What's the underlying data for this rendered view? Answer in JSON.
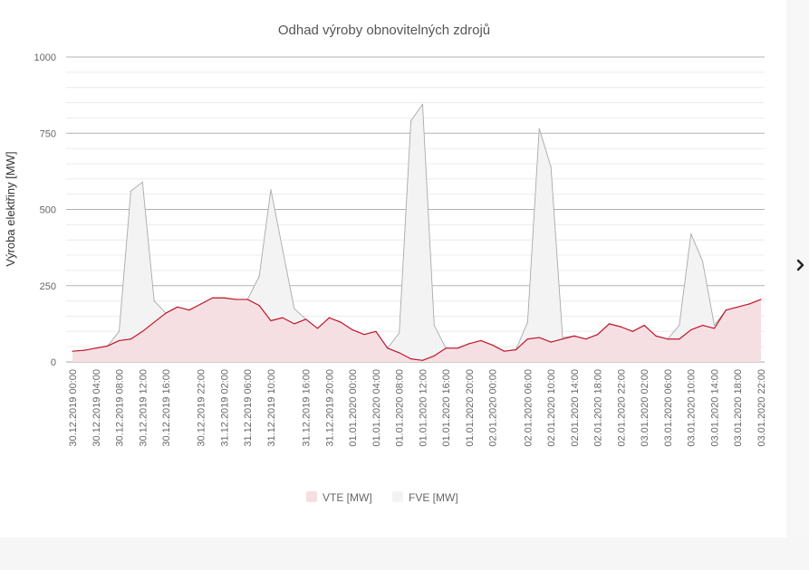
{
  "chart_data": {
    "type": "area",
    "title": "Odhad výroby obnovitelných zdrojů",
    "xlabel": "",
    "ylabel": "Výroba elektřiny [MW]",
    "ylim": [
      0,
      1000
    ],
    "yticks": [
      0,
      250,
      500,
      750,
      1000
    ],
    "grid": true,
    "legend_position": "bottom",
    "x": [
      "30.12.2019 00:00",
      "30.12.2019 02:00",
      "30.12.2019 04:00",
      "30.12.2019 06:00",
      "30.12.2019 08:00",
      "30.12.2019 10:00",
      "30.12.2019 12:00",
      "30.12.2019 14:00",
      "30.12.2019 16:00",
      "30.12.2019 18:00",
      "30.12.2019 20:00",
      "30.12.2019 22:00",
      "31.12.2019 00:00",
      "31.12.2019 02:00",
      "31.12.2019 04:00",
      "31.12.2019 06:00",
      "31.12.2019 08:00",
      "31.12.2019 10:00",
      "31.12.2019 12:00",
      "31.12.2019 14:00",
      "31.12.2019 16:00",
      "31.12.2019 18:00",
      "31.12.2019 20:00",
      "31.12.2019 22:00",
      "01.01.2020 00:00",
      "01.01.2020 02:00",
      "01.01.2020 04:00",
      "01.01.2020 06:00",
      "01.01.2020 08:00",
      "01.01.2020 10:00",
      "01.01.2020 12:00",
      "01.01.2020 14:00",
      "01.01.2020 16:00",
      "01.01.2020 18:00",
      "01.01.2020 20:00",
      "01.01.2020 22:00",
      "02.01.2020 00:00",
      "02.01.2020 02:00",
      "02.01.2020 04:00",
      "02.01.2020 06:00",
      "02.01.2020 08:00",
      "02.01.2020 10:00",
      "02.01.2020 12:00",
      "02.01.2020 14:00",
      "02.01.2020 16:00",
      "02.01.2020 18:00",
      "02.01.2020 20:00",
      "02.01.2020 22:00",
      "03.01.2020 00:00",
      "03.01.2020 02:00",
      "03.01.2020 04:00",
      "03.01.2020 06:00",
      "03.01.2020 08:00",
      "03.01.2020 10:00",
      "03.01.2020 12:00",
      "03.01.2020 14:00",
      "03.01.2020 16:00",
      "03.01.2020 18:00",
      "03.01.2020 20:00",
      "03.01.2020 22:00"
    ],
    "x_tick_labels": [
      "30.12.2019 00:00",
      "30.12.2019 04:00",
      "30.12.2019 08:00",
      "30.12.2019 12:00",
      "30.12.2019 16:00",
      "30.12.2019 22:00",
      "31.12.2019 02:00",
      "31.12.2019 06:00",
      "31.12.2019 10:00",
      "31.12.2019 16:00",
      "31.12.2019 20:00",
      "01.01.2020 00:00",
      "01.01.2020 04:00",
      "01.01.2020 08:00",
      "01.01.2020 12:00",
      "01.01.2020 16:00",
      "01.01.2020 20:00",
      "02.01.2020 00:00",
      "02.01.2020 06:00",
      "02.01.2020 10:00",
      "02.01.2020 14:00",
      "02.01.2020 18:00",
      "02.01.2020 22:00",
      "03.01.2020 02:00",
      "03.01.2020 06:00",
      "03.01.2020 10:00",
      "03.01.2020 14:00",
      "03.01.2020 18:00",
      "03.01.2020 22:00"
    ],
    "series": [
      {
        "name": "VTE [MW]",
        "color": "#c0162c",
        "fill": "#f6dfe2",
        "values": [
          35,
          38,
          45,
          52,
          70,
          75,
          100,
          130,
          160,
          180,
          170,
          190,
          210,
          210,
          205,
          205,
          185,
          135,
          145,
          125,
          140,
          110,
          145,
          130,
          105,
          90,
          100,
          45,
          30,
          10,
          5,
          20,
          45,
          45,
          60,
          70,
          55,
          35,
          40,
          75,
          80,
          65,
          75,
          85,
          75,
          90,
          125,
          115,
          100,
          120,
          85,
          75,
          75,
          105,
          120,
          110,
          170,
          180,
          190,
          205
        ]
      },
      {
        "name": "FVE [MW]",
        "color": "#aaaaaa",
        "fill": "#f3f3f3",
        "values": [
          35,
          38,
          45,
          52,
          100,
          560,
          590,
          200,
          160,
          180,
          170,
          190,
          210,
          210,
          205,
          205,
          280,
          565,
          370,
          175,
          140,
          110,
          145,
          130,
          105,
          90,
          100,
          45,
          95,
          790,
          845,
          120,
          45,
          45,
          60,
          70,
          55,
          35,
          40,
          130,
          765,
          640,
          80,
          85,
          75,
          90,
          125,
          115,
          100,
          120,
          85,
          75,
          120,
          420,
          330,
          120,
          170,
          180,
          190,
          205
        ]
      }
    ]
  },
  "icons": {
    "next": "chevron-right-icon"
  }
}
